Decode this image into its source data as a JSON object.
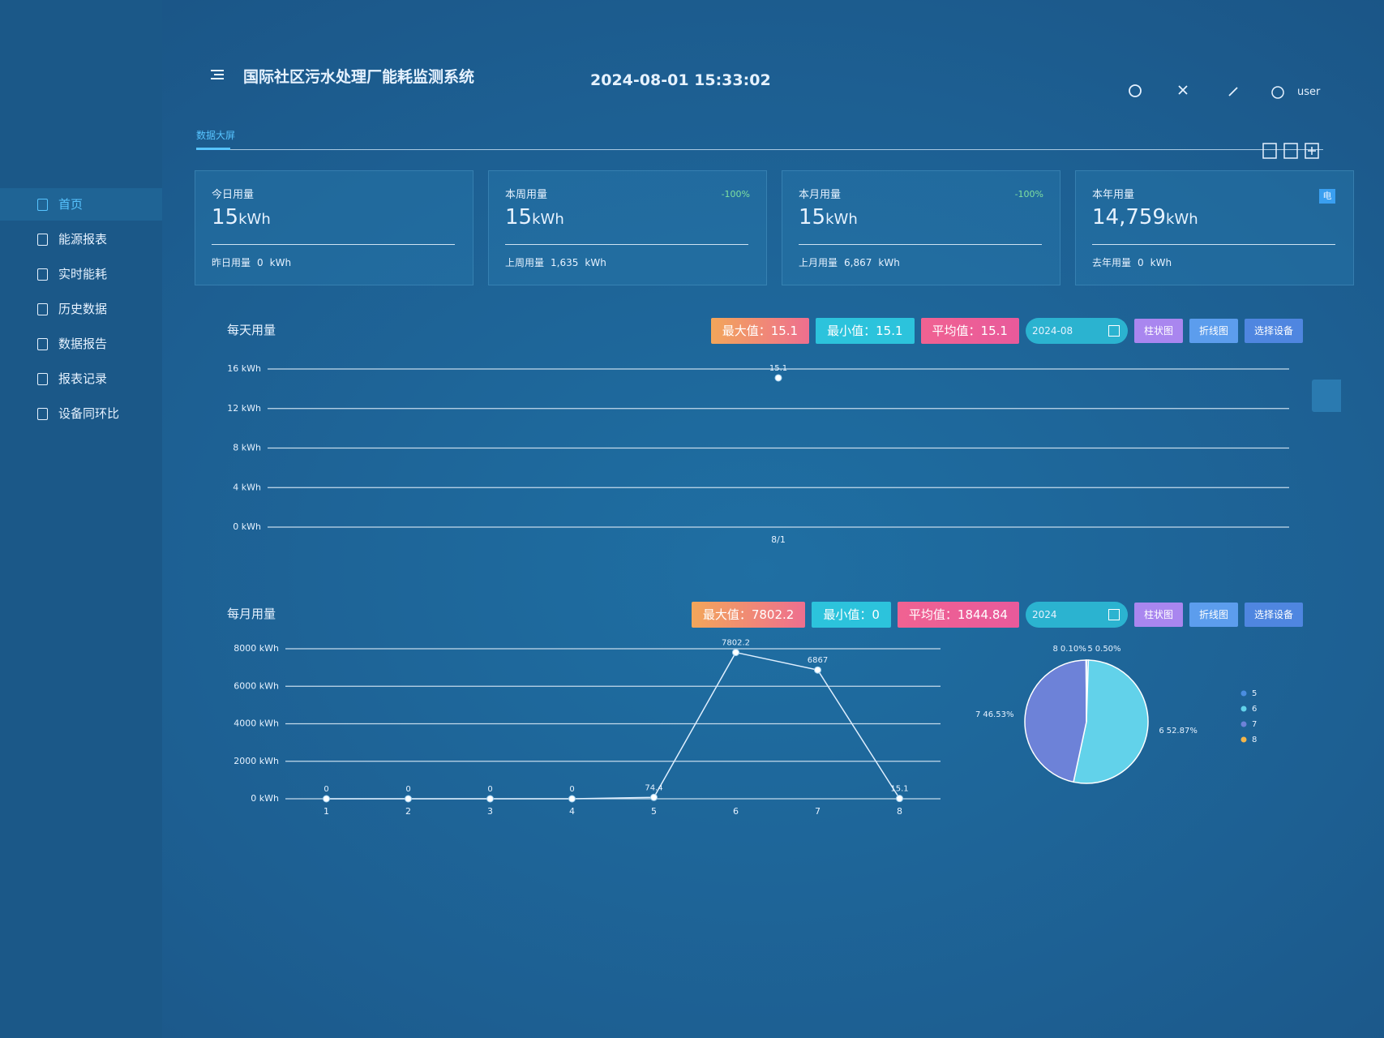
{
  "header": {
    "title": "国际社区污水处理厂能耗监测系统",
    "datetime": "2024-08-01 15:33:02",
    "user": "user"
  },
  "breadcrumb": "数据大屏",
  "menu": [
    "首页",
    "能源报表",
    "实时能耗",
    "历史数据",
    "数据报告",
    "报表记录",
    "设备同环比"
  ],
  "cards": [
    {
      "title": "今日用量",
      "value": "15",
      "unit": "kWh",
      "compare_label": "昨日用量",
      "compare_value": "0",
      "compare_unit": "kWh"
    },
    {
      "title": "本周用量",
      "value": "15",
      "unit": "kWh",
      "change": "-100%",
      "compare_label": "上周用量",
      "compare_value": "1,635",
      "compare_unit": "kWh"
    },
    {
      "title": "本月用量",
      "value": "15",
      "unit": "kWh",
      "change": "-100%",
      "compare_label": "上月用量",
      "compare_value": "6,867",
      "compare_unit": "kWh"
    },
    {
      "title": "本年用量",
      "value": "14,759",
      "unit": "kWh",
      "badge": "电",
      "compare_label": "去年用量",
      "compare_value": "0",
      "compare_unit": "kWh"
    }
  ],
  "daily": {
    "title": "每天用量",
    "stats": [
      {
        "label": "最大值：",
        "value": "15.1"
      },
      {
        "label": "最小值：",
        "value": "15.1"
      },
      {
        "label": "平均值：",
        "value": "15.1"
      }
    ],
    "date": "2024-08",
    "buttons": [
      "柱状图",
      "折线图",
      "选择设备"
    ],
    "chart": {
      "type": "line",
      "categories": [
        "8/1"
      ],
      "values": [
        15.1
      ],
      "color": "#dfefff",
      "ylim": [
        0,
        16
      ],
      "yticks": [
        {
          "value": 0,
          "label": "0 kWh"
        },
        {
          "value": 4,
          "label": "4 kWh"
        },
        {
          "value": 8,
          "label": "8 kWh"
        },
        {
          "value": 12,
          "label": "12 kWh"
        },
        {
          "value": 16,
          "label": "16 kWh"
        }
      ],
      "grid": true
    }
  },
  "monthly": {
    "title": "每月用量",
    "stats": [
      {
        "label": "最大值：",
        "value": "7802.2"
      },
      {
        "label": "最小值：",
        "value": "0"
      },
      {
        "label": "平均值：",
        "value": "1844.84"
      }
    ],
    "date": "2024",
    "buttons": [
      "柱状图",
      "折线图",
      "选择设备"
    ],
    "chart": {
      "type": "line",
      "categories": [
        "1",
        "2",
        "3",
        "4",
        "5",
        "6",
        "7",
        "8"
      ],
      "values": [
        0,
        0,
        0,
        0,
        74.4,
        7802.2,
        6867,
        15.1
      ],
      "color": "#dfefff",
      "ylim": [
        0,
        8000
      ],
      "yticks": [
        {
          "value": 0,
          "label": "0 kWh"
        },
        {
          "value": 2000,
          "label": "2000 kWh"
        },
        {
          "value": 4000,
          "label": "4000 kWh"
        },
        {
          "value": 6000,
          "label": "6000 kWh"
        },
        {
          "value": 8000,
          "label": "8000 kWh"
        }
      ],
      "grid": true
    },
    "pie": {
      "type": "pie",
      "categories": [
        "5",
        "6",
        "7",
        "8"
      ],
      "values": [
        0.5,
        52.87,
        46.53,
        0.1
      ],
      "value_labels": [
        "0.50%",
        "52.87%",
        "46.53%",
        "0.10%"
      ],
      "colors": [
        "#4a8de0",
        "#62d2ea",
        "#6d82d8",
        "#f3b54a"
      ]
    }
  }
}
